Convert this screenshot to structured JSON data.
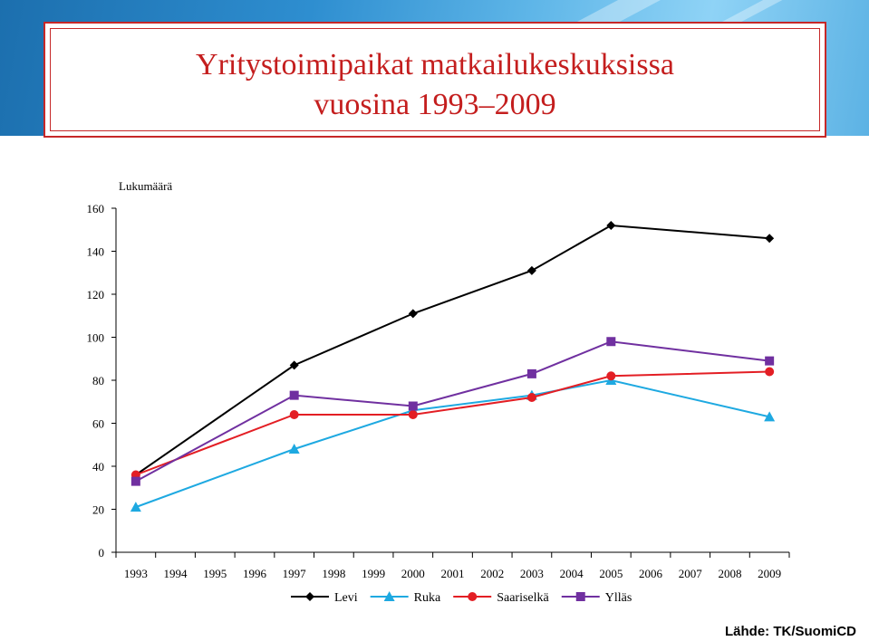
{
  "title_line1": "Yritystoimipaikat matkailukeskuksissa",
  "title_line2": "vuosina 1993–2009",
  "source": "Lähde: TK/SuomiCD",
  "chart_data": {
    "type": "line",
    "ylabel": "Lukumäärä",
    "xlabel": "",
    "ylim": [
      0,
      160
    ],
    "yticks": [
      0,
      20,
      40,
      60,
      80,
      100,
      120,
      140,
      160
    ],
    "categories": [
      "1993",
      "1994",
      "1995",
      "1996",
      "1997",
      "1998",
      "1999",
      "2000",
      "2001",
      "2002",
      "2003",
      "2004",
      "2005",
      "2006",
      "2007",
      "2008",
      "2009"
    ],
    "legend_position": "bottom",
    "grid": false,
    "series": [
      {
        "name": "Levi",
        "color": "#000000",
        "marker": "diamond",
        "points": [
          [
            "1993",
            36
          ],
          [
            "1997",
            87
          ],
          [
            "2000",
            111
          ],
          [
            "2003",
            131
          ],
          [
            "2005",
            152
          ],
          [
            "2009",
            146
          ]
        ]
      },
      {
        "name": "Ruka",
        "color": "#1ea9e1",
        "marker": "triangle",
        "points": [
          [
            "1993",
            21
          ],
          [
            "1997",
            48
          ],
          [
            "2000",
            66
          ],
          [
            "2003",
            73
          ],
          [
            "2005",
            80
          ],
          [
            "2009",
            63
          ]
        ]
      },
      {
        "name": "Saariselkä",
        "color": "#e31e24",
        "marker": "circle",
        "points": [
          [
            "1993",
            36
          ],
          [
            "1997",
            64
          ],
          [
            "2000",
            64
          ],
          [
            "2003",
            72
          ],
          [
            "2005",
            82
          ],
          [
            "2009",
            84
          ]
        ]
      },
      {
        "name": "Ylläs",
        "color": "#7030a0",
        "marker": "square",
        "points": [
          [
            "1993",
            33
          ],
          [
            "1997",
            73
          ],
          [
            "2000",
            68
          ],
          [
            "2003",
            83
          ],
          [
            "2005",
            98
          ],
          [
            "2009",
            89
          ]
        ]
      }
    ]
  }
}
